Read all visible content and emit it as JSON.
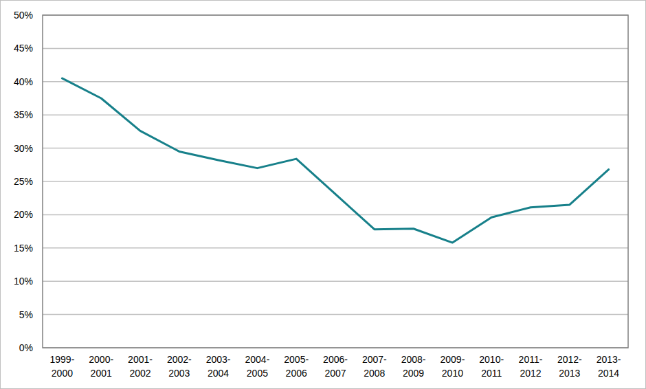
{
  "chart_data": {
    "type": "line",
    "categories": [
      "1999-2000",
      "2000-2001",
      "2001-2002",
      "2002-2003",
      "2003-2004",
      "2004-2005",
      "2005-2006",
      "2006-2007",
      "2007-2008",
      "2008-2009",
      "2009-2010",
      "2010-2011",
      "2011-2012",
      "2012-2013",
      "2013-2014"
    ],
    "values": [
      40.5,
      37.5,
      32.6,
      29.5,
      28.2,
      27.0,
      28.4,
      23.1,
      17.8,
      17.9,
      15.8,
      19.6,
      21.1,
      21.5,
      26.8
    ],
    "color": "#17808a",
    "ylim": [
      0,
      50
    ],
    "yticks": [
      {
        "value": 0,
        "label": "0%"
      },
      {
        "value": 5,
        "label": "5%"
      },
      {
        "value": 10,
        "label": "10%"
      },
      {
        "value": 15,
        "label": "15%"
      },
      {
        "value": 20,
        "label": "20%"
      },
      {
        "value": 25,
        "label": "25%"
      },
      {
        "value": 30,
        "label": "30%"
      },
      {
        "value": 35,
        "label": "35%"
      },
      {
        "value": 40,
        "label": "40%"
      },
      {
        "value": 45,
        "label": "45%"
      },
      {
        "value": 50,
        "label": "50%"
      }
    ],
    "grid": true
  }
}
